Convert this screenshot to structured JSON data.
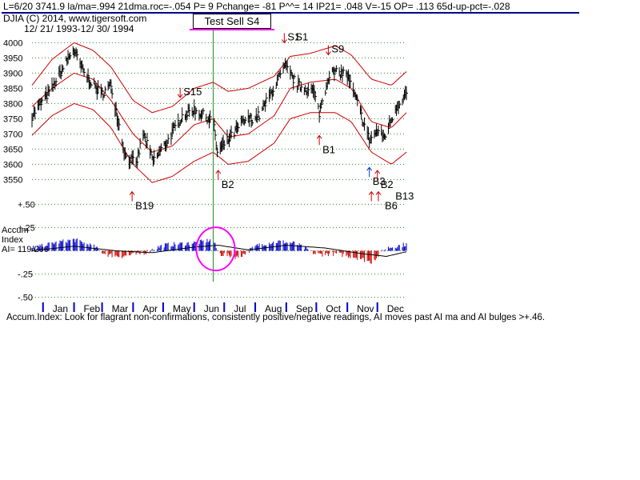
{
  "header": {
    "line1": "L=6/20  3741.9  la/ma=.994 21dma.roc=-.054 P=  9 Pchange= -81 P^^= 14 IP21= .048 V=-15 OP= .113 65d-up-pct=-.028",
    "line2": "DJIA   (C) 2014, www.tigersoft.com",
    "line3": "12/ 21/ 1993-12/ 30/ 1994"
  },
  "title_box": "Test Sell S4",
  "footer": "Accum.Index: Look for flagrant non-confirmations, consistently positive/negative readings, AI moves past AI ma and AI bulges >+.46.",
  "accum_label": [
    "Accum",
    "Index",
    "AI= 119/200"
  ],
  "colors": {
    "price_bars": "#000000",
    "bands": "#cc0000",
    "grid": "#2a8a2a",
    "vline": "#2a8a2a",
    "ai_pos": "#0000cc",
    "ai_neg": "#cc0000",
    "ai_ma": "#000000",
    "circle": "#ff00ff",
    "title_underline": "#ff00ff",
    "header_rule": "#000088",
    "buy_arrow": "#cc0000",
    "buy_arrow_blue": "#0033cc",
    "sell_arrow": "#cc0000"
  },
  "chart_data": [
    {
      "type": "line",
      "title": "",
      "ylim": [
        3530,
        4030
      ],
      "y_ticks": [
        "4000",
        "3950",
        "3900",
        "3850",
        "3800",
        "3750",
        "3700",
        "3650",
        "3600",
        "3550"
      ],
      "y_tick_values": [
        4000,
        3950,
        3900,
        3850,
        3800,
        3750,
        3700,
        3650,
        3600,
        3550
      ],
      "x_ticks": [
        "Jan",
        "Feb",
        "Mar",
        "Apr",
        "May",
        "Jun",
        "Jul",
        "Aug",
        "Sep",
        "Oct",
        "Nov",
        "Dec"
      ],
      "x_start": "1993-12-21",
      "x_end": "1994-12-30",
      "price_anchors": [
        {
          "date": "1993-12-21",
          "value": 3760
        },
        {
          "date": "1994-01-10",
          "value": 3850
        },
        {
          "date": "1994-01-31",
          "value": 3978
        },
        {
          "date": "1994-02-11",
          "value": 3900
        },
        {
          "date": "1994-02-28",
          "value": 3830
        },
        {
          "date": "1994-03-10",
          "value": 3860
        },
        {
          "date": "1994-03-24",
          "value": 3630
        },
        {
          "date": "1994-04-04",
          "value": 3600
        },
        {
          "date": "1994-04-11",
          "value": 3700
        },
        {
          "date": "1994-04-21",
          "value": 3610
        },
        {
          "date": "1994-05-06",
          "value": 3680
        },
        {
          "date": "1994-05-20",
          "value": 3760
        },
        {
          "date": "1994-06-01",
          "value": 3780
        },
        {
          "date": "1994-06-20",
          "value": 3742
        },
        {
          "date": "1994-06-24",
          "value": 3640
        },
        {
          "date": "1994-07-05",
          "value": 3680
        },
        {
          "date": "1994-07-20",
          "value": 3740
        },
        {
          "date": "1994-08-05",
          "value": 3760
        },
        {
          "date": "1994-08-24",
          "value": 3880
        },
        {
          "date": "1994-08-31",
          "value": 3920
        },
        {
          "date": "1994-09-12",
          "value": 3860
        },
        {
          "date": "1994-09-28",
          "value": 3840
        },
        {
          "date": "1994-10-04",
          "value": 3770
        },
        {
          "date": "1994-10-14",
          "value": 3900
        },
        {
          "date": "1994-10-31",
          "value": 3900
        },
        {
          "date": "1994-11-10",
          "value": 3810
        },
        {
          "date": "1994-11-23",
          "value": 3680
        },
        {
          "date": "1994-12-01",
          "value": 3710
        },
        {
          "date": "1994-12-08",
          "value": 3690
        },
        {
          "date": "1994-12-20",
          "value": 3790
        },
        {
          "date": "1994-12-30",
          "value": 3834
        }
      ],
      "band_upper": [
        {
          "date": "1993-12-21",
          "value": 3860
        },
        {
          "date": "1994-01-10",
          "value": 3945
        },
        {
          "date": "1994-02-01",
          "value": 4000
        },
        {
          "date": "1994-02-20",
          "value": 3975
        },
        {
          "date": "1994-03-10",
          "value": 3920
        },
        {
          "date": "1994-04-01",
          "value": 3810
        },
        {
          "date": "1994-04-20",
          "value": 3770
        },
        {
          "date": "1994-05-10",
          "value": 3790
        },
        {
          "date": "1994-06-01",
          "value": 3850
        },
        {
          "date": "1994-06-20",
          "value": 3870
        },
        {
          "date": "1994-07-05",
          "value": 3840
        },
        {
          "date": "1994-07-25",
          "value": 3850
        },
        {
          "date": "1994-08-20",
          "value": 3890
        },
        {
          "date": "1994-09-05",
          "value": 3955
        },
        {
          "date": "1994-09-25",
          "value": 3965
        },
        {
          "date": "1994-10-20",
          "value": 3990
        },
        {
          "date": "1994-11-05",
          "value": 3960
        },
        {
          "date": "1994-11-25",
          "value": 3880
        },
        {
          "date": "1994-12-15",
          "value": 3860
        },
        {
          "date": "1994-12-30",
          "value": 3905
        }
      ],
      "band_middle": [
        {
          "date": "1993-12-21",
          "value": 3790
        },
        {
          "date": "1994-01-10",
          "value": 3850
        },
        {
          "date": "1994-02-01",
          "value": 3900
        },
        {
          "date": "1994-02-20",
          "value": 3880
        },
        {
          "date": "1994-03-10",
          "value": 3810
        },
        {
          "date": "1994-04-01",
          "value": 3700
        },
        {
          "date": "1994-04-20",
          "value": 3640
        },
        {
          "date": "1994-05-10",
          "value": 3660
        },
        {
          "date": "1994-06-01",
          "value": 3730
        },
        {
          "date": "1994-06-20",
          "value": 3750
        },
        {
          "date": "1994-07-05",
          "value": 3690
        },
        {
          "date": "1994-07-25",
          "value": 3700
        },
        {
          "date": "1994-08-20",
          "value": 3760
        },
        {
          "date": "1994-09-05",
          "value": 3850
        },
        {
          "date": "1994-09-25",
          "value": 3870
        },
        {
          "date": "1994-10-20",
          "value": 3880
        },
        {
          "date": "1994-11-05",
          "value": 3850
        },
        {
          "date": "1994-11-25",
          "value": 3740
        },
        {
          "date": "1994-12-15",
          "value": 3720
        },
        {
          "date": "1994-12-30",
          "value": 3770
        }
      ],
      "band_lower": [
        {
          "date": "1993-12-21",
          "value": 3695
        },
        {
          "date": "1994-01-10",
          "value": 3760
        },
        {
          "date": "1994-02-01",
          "value": 3800
        },
        {
          "date": "1994-02-20",
          "value": 3780
        },
        {
          "date": "1994-03-10",
          "value": 3720
        },
        {
          "date": "1994-04-01",
          "value": 3600
        },
        {
          "date": "1994-04-20",
          "value": 3540
        },
        {
          "date": "1994-05-10",
          "value": 3560
        },
        {
          "date": "1994-06-01",
          "value": 3610
        },
        {
          "date": "1994-06-20",
          "value": 3640
        },
        {
          "date": "1994-07-05",
          "value": 3600
        },
        {
          "date": "1994-07-25",
          "value": 3610
        },
        {
          "date": "1994-08-20",
          "value": 3670
        },
        {
          "date": "1994-09-05",
          "value": 3750
        },
        {
          "date": "1994-09-25",
          "value": 3770
        },
        {
          "date": "1994-10-20",
          "value": 3770
        },
        {
          "date": "1994-11-05",
          "value": 3740
        },
        {
          "date": "1994-11-25",
          "value": 3640
        },
        {
          "date": "1994-12-15",
          "value": 3600
        },
        {
          "date": "1994-12-30",
          "value": 3640
        }
      ],
      "signals": [
        {
          "label": "S15",
          "date": "1994-05-18",
          "value": 3820,
          "type": "sell"
        },
        {
          "label": "S1",
          "date": "1994-08-30",
          "value": 4000,
          "type": "sell"
        },
        {
          "label": "S1",
          "date": "1994-09-07",
          "value": 4000,
          "type": "sell",
          "no_arrow": true
        },
        {
          "label": "S9",
          "date": "1994-10-13",
          "value": 3960,
          "type": "sell"
        },
        {
          "label": "B19",
          "date": "1994-03-31",
          "value": 3510,
          "type": "buy"
        },
        {
          "label": "B2",
          "date": "1994-06-25",
          "value": 3580,
          "type": "buy"
        },
        {
          "label": "B1",
          "date": "1994-10-04",
          "value": 3695,
          "type": "buy"
        },
        {
          "label": "B3",
          "date": "1994-11-23",
          "value": 3590,
          "type": "buy",
          "blue": true
        },
        {
          "label": "B2",
          "date": "1994-12-01",
          "value": 3580,
          "type": "buy"
        },
        {
          "label": "B13",
          "date": "1994-11-25",
          "value": 3510,
          "type": "buy",
          "label_dx": 30,
          "label_dy": 10
        },
        {
          "label": "B6",
          "date": "1994-12-02",
          "value": 3510,
          "type": "buy",
          "label_dx": 8,
          "label_dy": 22
        }
      ],
      "signal_line_date": "1994-06-20"
    },
    {
      "type": "bar",
      "title": "",
      "ylim": [
        -0.52,
        0.52
      ],
      "y_ticks": [
        "+.50",
        "+.25",
        "-.25",
        "-.50"
      ],
      "y_tick_values": [
        0.5,
        0.25,
        -0.25,
        -0.5
      ],
      "ai_anchors": [
        {
          "date": "1993-12-21",
          "value": 0.02
        },
        {
          "date": "1994-01-10",
          "value": 0.08
        },
        {
          "date": "1994-02-01",
          "value": 0.12
        },
        {
          "date": "1994-02-20",
          "value": 0.05
        },
        {
          "date": "1994-03-05",
          "value": -0.04
        },
        {
          "date": "1994-03-20",
          "value": -0.06
        },
        {
          "date": "1994-04-10",
          "value": -0.03
        },
        {
          "date": "1994-05-01",
          "value": 0.06
        },
        {
          "date": "1994-06-05",
          "value": 0.09
        },
        {
          "date": "1994-06-20",
          "value": 0.12
        },
        {
          "date": "1994-06-25",
          "value": -0.03
        },
        {
          "date": "1994-07-15",
          "value": -0.07
        },
        {
          "date": "1994-08-05",
          "value": 0.07
        },
        {
          "date": "1994-08-25",
          "value": 0.1
        },
        {
          "date": "1994-09-10",
          "value": 0.08
        },
        {
          "date": "1994-10-01",
          "value": -0.04
        },
        {
          "date": "1994-10-20",
          "value": -0.03
        },
        {
          "date": "1994-11-10",
          "value": -0.07
        },
        {
          "date": "1994-11-25",
          "value": -0.12
        },
        {
          "date": "1994-12-10",
          "value": 0.03
        },
        {
          "date": "1994-12-30",
          "value": 0.07
        }
      ],
      "ma_anchors": [
        {
          "date": "1993-12-21",
          "value": 0.0
        },
        {
          "date": "1994-02-01",
          "value": 0.05
        },
        {
          "date": "1994-03-15",
          "value": 0.0
        },
        {
          "date": "1994-04-20",
          "value": -0.02
        },
        {
          "date": "1994-06-01",
          "value": 0.04
        },
        {
          "date": "1994-06-25",
          "value": 0.06
        },
        {
          "date": "1994-07-25",
          "value": 0.01
        },
        {
          "date": "1994-09-01",
          "value": 0.06
        },
        {
          "date": "1994-10-10",
          "value": 0.03
        },
        {
          "date": "1994-11-15",
          "value": -0.03
        },
        {
          "date": "1994-12-10",
          "value": -0.06
        },
        {
          "date": "1994-12-30",
          "value": -0.01
        }
      ]
    }
  ]
}
